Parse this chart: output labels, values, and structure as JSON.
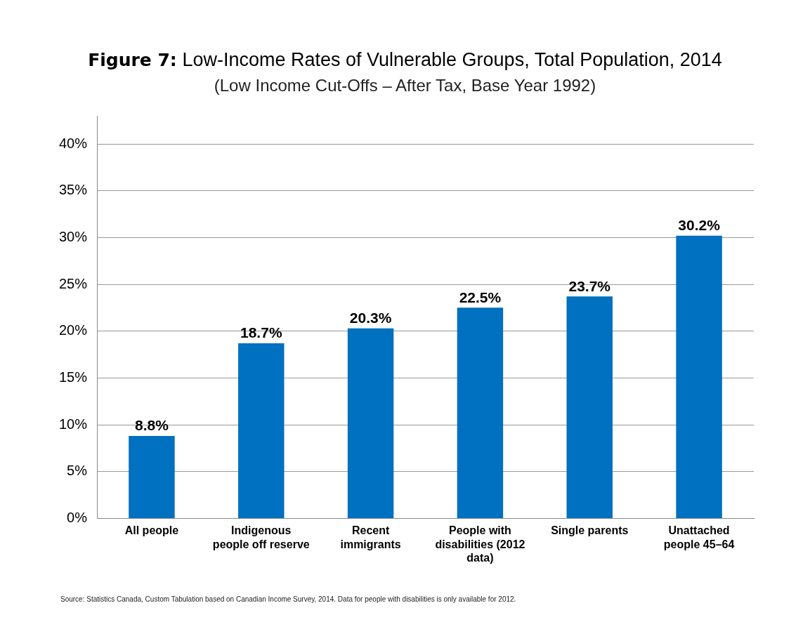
{
  "chart_data": {
    "type": "bar",
    "title": "Figure 7: Low-Income Rates of Vulnerable Groups, Total Population, 2014",
    "subtitle": "(Low Income Cut-Offs – After Tax, Base Year 1992)",
    "categories": [
      "All people",
      "Indigenous people off reserve",
      "Recent immigrants",
      "People with disabilities (2012 data)",
      "Single parents",
      "Unattached people 45–64"
    ],
    "values": [
      8.8,
      18.7,
      20.3,
      22.5,
      23.7,
      30.2
    ],
    "color": "#0070c0",
    "ylim": [
      0,
      43
    ],
    "yticks": [
      {
        "value": 0,
        "label": "0%"
      },
      {
        "value": 5,
        "label": "5%"
      },
      {
        "value": 10,
        "label": "10%"
      },
      {
        "value": 15,
        "label": "15%"
      },
      {
        "value": 20,
        "label": "20%"
      },
      {
        "value": 25,
        "label": "25%"
      },
      {
        "value": 30,
        "label": "30%"
      },
      {
        "value": 35,
        "label": "35%"
      },
      {
        "value": 40,
        "label": "40%"
      }
    ],
    "value_labels": [
      "8.8%",
      "18.7%",
      "20.3%",
      "22.5%",
      "23.7%",
      "30.2%"
    ],
    "grid": "y",
    "legend": false,
    "annotations": [
      "Source: Statistics Canada, Custom Tabulation based on Canadian Income Survey, 2014. Data for people with disabilities is only available for 2012."
    ]
  }
}
